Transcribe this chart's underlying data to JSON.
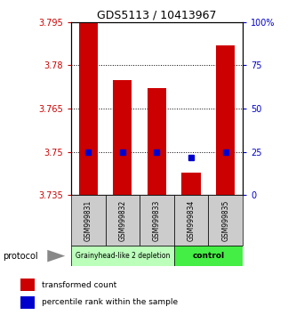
{
  "title": "GDS5113 / 10413967",
  "categories": [
    "GSM999831",
    "GSM999832",
    "GSM999833",
    "GSM999834",
    "GSM999835"
  ],
  "bar_bottoms": [
    3.735,
    3.735,
    3.735,
    3.735,
    3.735
  ],
  "bar_tops": [
    3.795,
    3.775,
    3.772,
    3.743,
    3.787
  ],
  "percentile_values": [
    3.75,
    3.75,
    3.75,
    3.748,
    3.75
  ],
  "bar_color": "#cc0000",
  "dot_color": "#0000cc",
  "ylim": [
    3.735,
    3.795
  ],
  "yticks_left": [
    3.735,
    3.75,
    3.765,
    3.78,
    3.795
  ],
  "yticks_right": [
    0,
    25,
    50,
    75,
    100
  ],
  "ytick_labels_right": [
    "0",
    "25",
    "50",
    "75",
    "100%"
  ],
  "group1_label": "Grainyhead-like 2 depletion",
  "group2_label": "control",
  "group1_color": "#bbffbb",
  "group2_color": "#44ee44",
  "group1_indices": [
    0,
    1,
    2
  ],
  "group2_indices": [
    3,
    4
  ],
  "protocol_label": "protocol",
  "legend_red": "transformed count",
  "legend_blue": "percentile rank within the sample",
  "bar_width": 0.55
}
